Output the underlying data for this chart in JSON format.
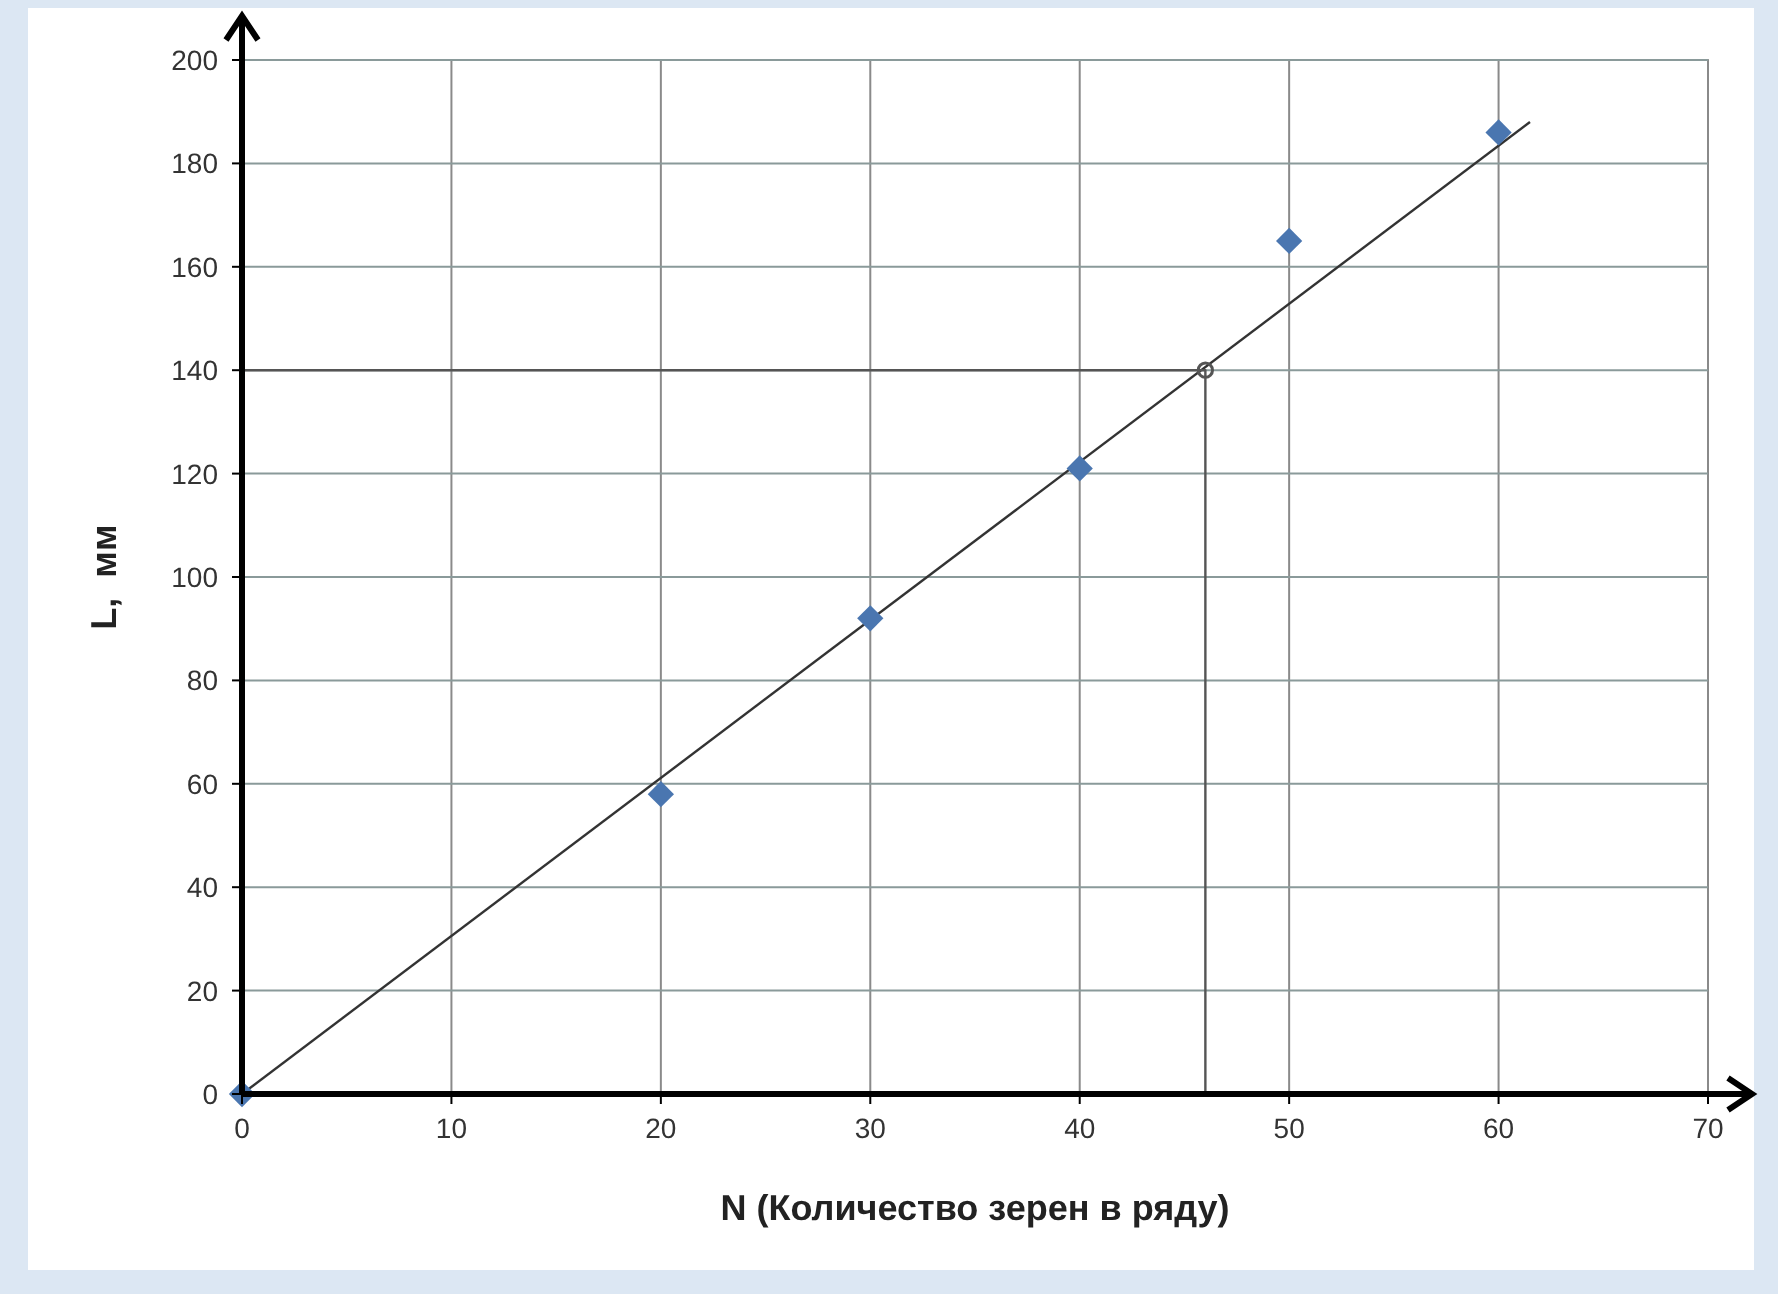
{
  "chart_data": {
    "type": "scatter",
    "xlabel": "N (Количество зерен в ряду)",
    "ylabel": "L,  мм",
    "xlim": [
      0,
      70
    ],
    "ylim": [
      0,
      200
    ],
    "xticks": [
      0,
      10,
      20,
      30,
      40,
      50,
      60,
      70
    ],
    "yticks": [
      0,
      20,
      40,
      60,
      80,
      100,
      120,
      140,
      160,
      180,
      200
    ],
    "grid": true,
    "series": [
      {
        "type": "line",
        "color": "#333333",
        "x": [
          0,
          61.5
        ],
        "values": [
          0,
          188
        ],
        "marker": "none"
      },
      {
        "type": "line",
        "color": "#555555",
        "x": [
          0,
          46,
          46
        ],
        "values": [
          140,
          140,
          0
        ],
        "marker": "none"
      },
      {
        "type": "scatter",
        "color": "#555555",
        "x": [
          46
        ],
        "values": [
          140
        ],
        "marker": "circle"
      },
      {
        "type": "scatter",
        "color": "#4a76b0",
        "x": [
          0,
          20,
          30,
          40,
          50,
          60
        ],
        "values": [
          0,
          58,
          92,
          121,
          165,
          186
        ],
        "marker": "diamond"
      }
    ]
  }
}
